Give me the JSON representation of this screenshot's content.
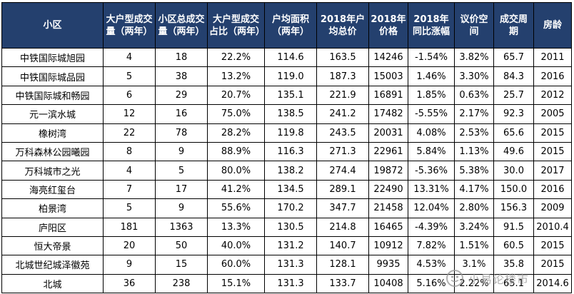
{
  "table": {
    "headers": [
      "小区",
      "大户型成交量（两年）",
      "小区总成交量（两年）",
      "大户型成交占比（两年）",
      "户均面积（两年）",
      "2018年户均总价",
      "2018年价格",
      "2018年同比涨幅",
      "议价空间",
      "成交周期",
      "房龄"
    ],
    "rows": [
      [
        "中铁国际城旭园",
        "4",
        "18",
        "22.2%",
        "114.6",
        "163.5",
        "14246",
        "-1.54%",
        "3.82%",
        "65.7",
        "2011"
      ],
      [
        "中铁国际城品园",
        "5",
        "38",
        "13.2%",
        "119.0",
        "187.3",
        "15003",
        "1.46%",
        "3.30%",
        "84.3",
        "2016"
      ],
      [
        "中铁国际城和畅园",
        "6",
        "29",
        "20.7%",
        "135.1",
        "221.9",
        "16891",
        "1.85%",
        "0.63%",
        "25.7",
        "2012"
      ],
      [
        "元一滨水城",
        "12",
        "16",
        "75.0%",
        "138.5",
        "241.2",
        "17482",
        "-5.55%",
        "2.17%",
        "92.3",
        "2005"
      ],
      [
        "橡树湾",
        "22",
        "78",
        "28.2%",
        "119.8",
        "243.5",
        "20031",
        "4.08%",
        "2.53%",
        "65.6",
        "2015"
      ],
      [
        "万科森林公园曦园",
        "8",
        "9",
        "88.9%",
        "116.3",
        "271.3",
        "22961",
        "5.84%",
        "1.13%",
        "49.6",
        "2015"
      ],
      [
        "万科城市之光",
        "4",
        "5",
        "80.0%",
        "138.2",
        "274.4",
        "19872",
        "-5.36%",
        "5.38%",
        "30.0",
        "2017"
      ],
      [
        "海亮红玺台",
        "7",
        "17",
        "41.2%",
        "134.5",
        "289.1",
        "22490",
        "13.31%",
        "4.17%",
        "150.0",
        "2016"
      ],
      [
        "柏景湾",
        "5",
        "9",
        "55.6%",
        "170.2",
        "347.7",
        "21458",
        "12.04%",
        "2.80%",
        "156.3",
        "2009"
      ],
      [
        "庐阳区",
        "181",
        "1363",
        "13.3%",
        "130.5",
        "214.8",
        "16465",
        "-4.39%",
        "3.24%",
        "91.5",
        "2010.4"
      ],
      [
        "恒大帝景",
        "20",
        "50",
        "40.0%",
        "131.2",
        "140.7",
        "10912",
        "7.82%",
        "1.51%",
        "60.5",
        "2015"
      ],
      [
        "北城世纪城泽徽苑",
        "9",
        "15",
        "60.0%",
        "131.3",
        "128.1",
        "9935",
        "4.53%",
        "3.1%",
        "35.8",
        "2015"
      ],
      [
        "北城",
        "36",
        "238",
        "15.1%",
        "131.3",
        "133.7",
        "10408",
        "5.16%",
        "2.22%",
        "65.1",
        "2014.6"
      ]
    ]
  },
  "watermark": {
    "text": "小易论楼市",
    "icon": "wechat-channel-icon"
  }
}
